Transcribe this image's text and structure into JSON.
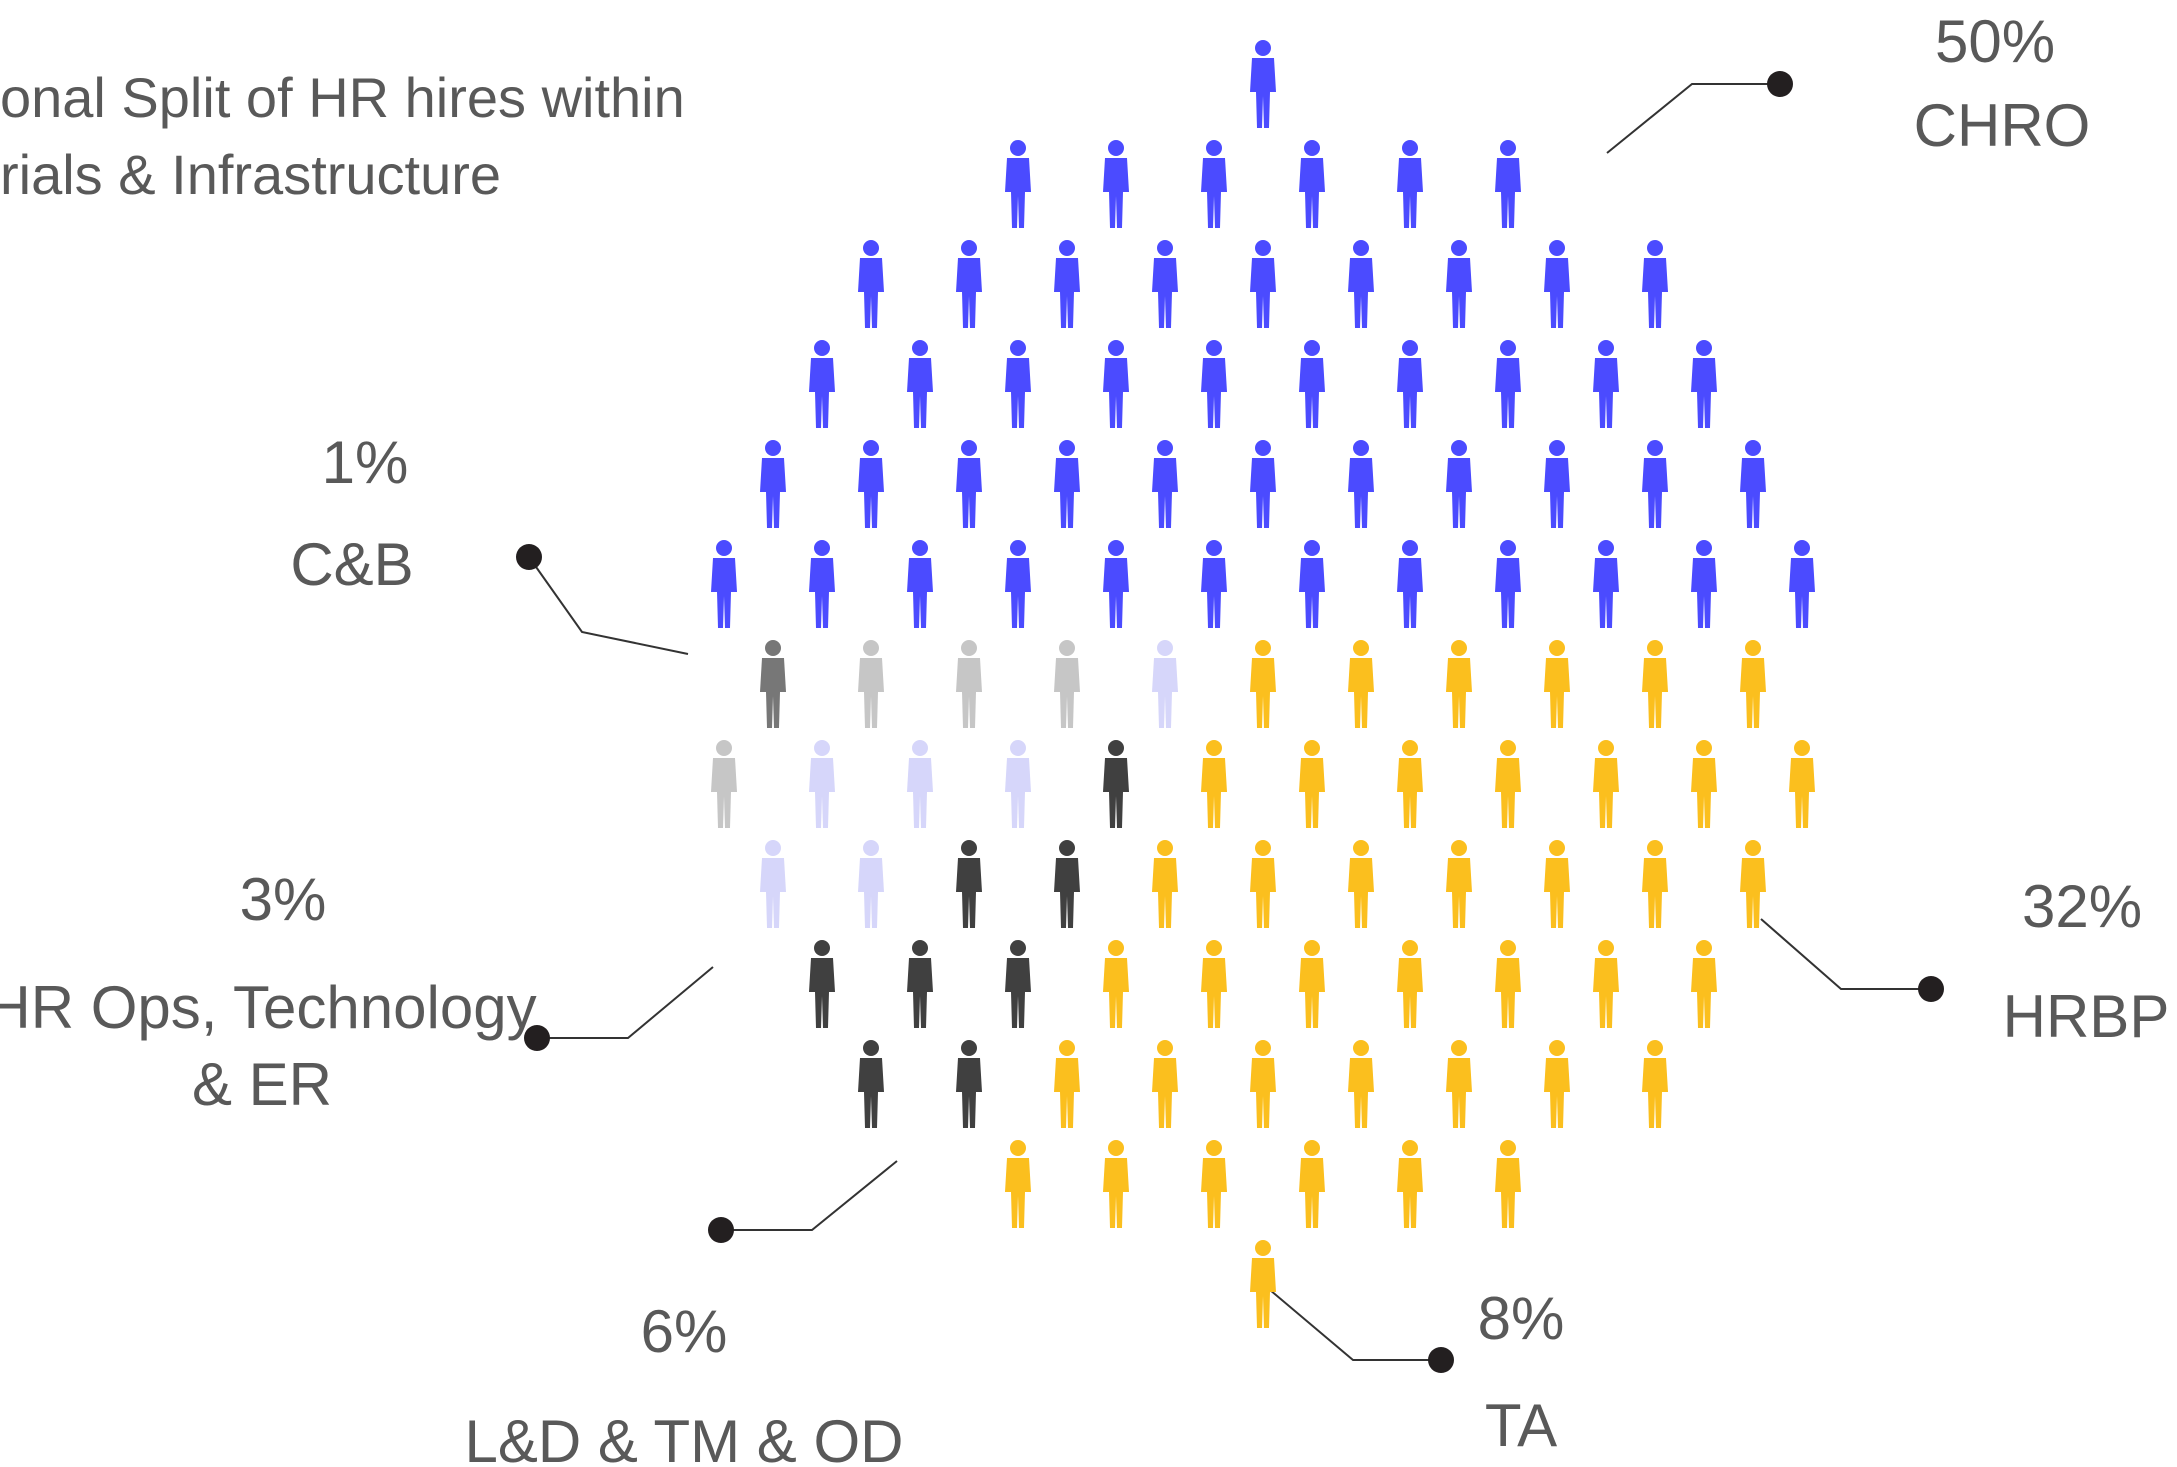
{
  "chart_data": {
    "type": "pictogram",
    "title": [
      "onal Split of HR hires within",
      "rials & Infrastructure"
    ],
    "categories": [
      "CHRO",
      "HRBP",
      "TA",
      "L&D & TM & OD",
      "HR Ops, Technology & ER",
      "C&B"
    ],
    "values": [
      50,
      32,
      8,
      6,
      3,
      1
    ],
    "value_labels": [
      "50%",
      "32%",
      "8%",
      "6%",
      "3%",
      "1%"
    ],
    "colors": [
      "#4b4bff",
      "#fbbf1e",
      "#404040",
      "#d6d6fa",
      "#c6c6c6",
      "#777777"
    ]
  }
}
